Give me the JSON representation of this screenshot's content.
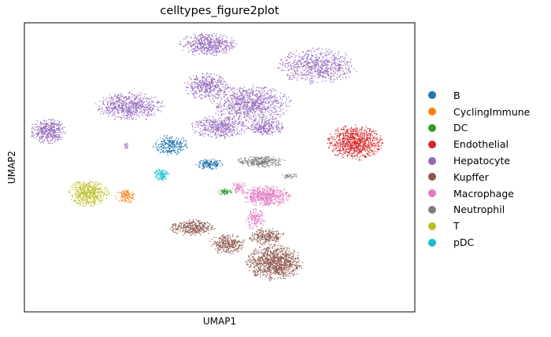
{
  "chart_data": {
    "type": "scatter",
    "title": "celltypes_figure2plot",
    "xlabel": "UMAP1",
    "ylabel": "UMAP2",
    "grid": false,
    "ticks": "none",
    "legend_position": "right",
    "xlim": [
      0,
      100
    ],
    "ylim": [
      0,
      100
    ],
    "series": [
      {
        "name": "B",
        "color": "#1f77b4",
        "clusters": [
          {
            "cx": 37.5,
            "cy": 57.5,
            "rx": 4.5,
            "ry": 3.5,
            "n": 260
          },
          {
            "cx": 47.5,
            "cy": 51.0,
            "rx": 3.5,
            "ry": 1.8,
            "n": 160
          }
        ]
      },
      {
        "name": "CyclingImmune",
        "color": "#ff7f0e",
        "clusters": [
          {
            "cx": 26.0,
            "cy": 40.0,
            "rx": 2.5,
            "ry": 2.3,
            "n": 120
          }
        ]
      },
      {
        "name": "DC",
        "color": "#2ca02c",
        "clusters": [
          {
            "cx": 51.5,
            "cy": 41.5,
            "rx": 1.8,
            "ry": 1.2,
            "n": 70
          }
        ]
      },
      {
        "name": "Endothelial",
        "color": "#d62728",
        "clusters": [
          {
            "cx": 84.5,
            "cy": 58.5,
            "rx": 7.0,
            "ry": 6.0,
            "n": 900
          }
        ]
      },
      {
        "name": "Hepatocyte",
        "color": "#9467bd",
        "clusters": [
          {
            "cx": 47.0,
            "cy": 92.5,
            "rx": 7.0,
            "ry": 4.0,
            "n": 500
          },
          {
            "cx": 75.0,
            "cy": 85.0,
            "rx": 10.0,
            "ry": 6.0,
            "n": 700
          },
          {
            "cx": 27.0,
            "cy": 71.0,
            "rx": 8.5,
            "ry": 4.8,
            "n": 650
          },
          {
            "cx": 46.5,
            "cy": 78.0,
            "rx": 5.5,
            "ry": 4.5,
            "n": 400
          },
          {
            "cx": 58.0,
            "cy": 72.0,
            "rx": 10.0,
            "ry": 6.5,
            "n": 900
          },
          {
            "cx": 50.0,
            "cy": 64.0,
            "rx": 7.0,
            "ry": 4.0,
            "n": 450
          },
          {
            "cx": 6.0,
            "cy": 62.5,
            "rx": 4.5,
            "ry": 4.2,
            "n": 400
          },
          {
            "cx": 62.0,
            "cy": 64.0,
            "rx": 4.5,
            "ry": 3.0,
            "n": 250
          },
          {
            "cx": 26.0,
            "cy": 57.5,
            "rx": 0.6,
            "ry": 1.2,
            "n": 18
          }
        ]
      },
      {
        "name": "Kupffer",
        "color": "#8c564b",
        "clusters": [
          {
            "cx": 43.0,
            "cy": 29.0,
            "rx": 5.5,
            "ry": 2.8,
            "n": 350
          },
          {
            "cx": 52.0,
            "cy": 23.5,
            "rx": 4.5,
            "ry": 3.5,
            "n": 300
          },
          {
            "cx": 64.0,
            "cy": 17.0,
            "rx": 7.0,
            "ry": 6.0,
            "n": 1000
          },
          {
            "cx": 62.0,
            "cy": 26.0,
            "rx": 4.5,
            "ry": 3.0,
            "n": 250
          }
        ]
      },
      {
        "name": "Macrophage",
        "color": "#e377c2",
        "clusters": [
          {
            "cx": 62.0,
            "cy": 40.0,
            "rx": 6.0,
            "ry": 3.5,
            "n": 550
          },
          {
            "cx": 59.0,
            "cy": 32.0,
            "rx": 2.5,
            "ry": 3.5,
            "n": 150
          },
          {
            "cx": 55.0,
            "cy": 43.0,
            "rx": 2.0,
            "ry": 2.0,
            "n": 70
          }
        ]
      },
      {
        "name": "Neutrophil",
        "color": "#7f7f7f",
        "clusters": [
          {
            "cx": 60.5,
            "cy": 52.0,
            "rx": 6.0,
            "ry": 2.0,
            "n": 320
          },
          {
            "cx": 68.0,
            "cy": 47.0,
            "rx": 2.0,
            "ry": 1.0,
            "n": 40
          }
        ]
      },
      {
        "name": "T",
        "color": "#bcbd22",
        "clusters": [
          {
            "cx": 16.5,
            "cy": 41.0,
            "rx": 5.0,
            "ry": 4.5,
            "n": 520
          }
        ]
      },
      {
        "name": "pDC",
        "color": "#17becf",
        "clusters": [
          {
            "cx": 35.0,
            "cy": 47.5,
            "rx": 2.2,
            "ry": 2.0,
            "n": 110
          }
        ]
      }
    ]
  }
}
